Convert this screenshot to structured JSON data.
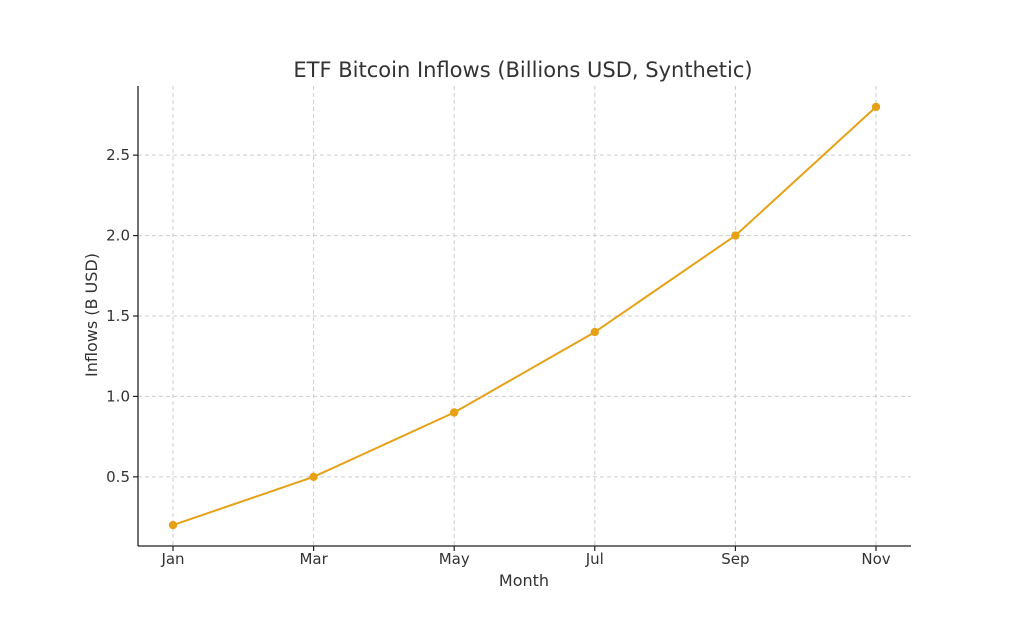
{
  "chart_data": {
    "type": "line",
    "title": "ETF Bitcoin Inflows (Billions USD, Synthetic)",
    "xlabel": "Month",
    "ylabel": "Inflows (B USD)",
    "categories": [
      "Jan",
      "Mar",
      "May",
      "Jul",
      "Sep",
      "Nov"
    ],
    "yticks": [
      "0.5",
      "1.0",
      "1.5",
      "2.0",
      "2.5"
    ],
    "ylim": [
      0.07,
      2.93
    ],
    "grid": true,
    "series": [
      {
        "values": [
          0.2,
          0.5,
          0.9,
          1.4,
          2.0,
          2.8
        ],
        "color": "#e6a117"
      }
    ]
  }
}
